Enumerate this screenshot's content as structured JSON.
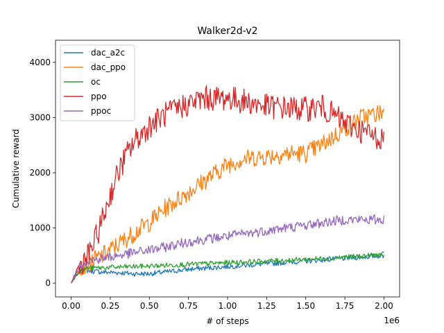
{
  "chart_data": {
    "type": "line",
    "title": "Walker2d-v2",
    "xlabel": "# of steps",
    "ylabel": "Cumulative reward",
    "x_offset_label": "1e6",
    "xlim": [
      -0.1,
      2.1
    ],
    "ylim": [
      -250,
      4400
    ],
    "x_ticks": [
      0.0,
      0.25,
      0.5,
      0.75,
      1.0,
      1.25,
      1.5,
      1.75,
      2.0
    ],
    "x_tick_labels": [
      "0.00",
      "0.25",
      "0.50",
      "0.75",
      "1.00",
      "1.25",
      "1.50",
      "1.75",
      "2.00"
    ],
    "y_ticks": [
      0,
      1000,
      2000,
      3000,
      4000
    ],
    "y_tick_labels": [
      "0",
      "1000",
      "2000",
      "3000",
      "4000"
    ],
    "grid": false,
    "legend_position": "top-left",
    "series": [
      {
        "name": "dac_a2c",
        "color": "#1f77b4",
        "x": [
          0.0,
          0.05,
          0.1,
          0.2,
          0.3,
          0.4,
          0.5,
          0.6,
          0.75,
          1.0,
          1.25,
          1.5,
          1.75,
          2.0
        ],
        "y": [
          0,
          200,
          230,
          200,
          190,
          170,
          170,
          200,
          250,
          300,
          350,
          400,
          450,
          500
        ],
        "noise": 45
      },
      {
        "name": "dac_ppo",
        "color": "#ff7f0e",
        "x": [
          0.0,
          0.05,
          0.1,
          0.2,
          0.3,
          0.4,
          0.5,
          0.6,
          0.75,
          0.9,
          1.0,
          1.1,
          1.25,
          1.4,
          1.5,
          1.6,
          1.75,
          1.85,
          2.0
        ],
        "y": [
          0,
          250,
          350,
          500,
          700,
          900,
          1100,
          1350,
          1650,
          1950,
          2150,
          2250,
          2300,
          2350,
          2350,
          2500,
          2800,
          3000,
          3100
        ],
        "noise": 170
      },
      {
        "name": "oc",
        "color": "#2ca02c",
        "x": [
          0.0,
          0.05,
          0.1,
          0.2,
          0.3,
          0.5,
          0.75,
          1.0,
          1.25,
          1.5,
          1.75,
          2.0
        ],
        "y": [
          0,
          220,
          270,
          280,
          290,
          310,
          340,
          370,
          400,
          430,
          470,
          520
        ],
        "noise": 45
      },
      {
        "name": "ppo",
        "color": "#d62728",
        "x": [
          0.0,
          0.05,
          0.1,
          0.15,
          0.2,
          0.25,
          0.3,
          0.35,
          0.4,
          0.5,
          0.6,
          0.75,
          0.85,
          1.0,
          1.1,
          1.25,
          1.5,
          1.6,
          1.75,
          1.9,
          2.0
        ],
        "y": [
          0,
          300,
          450,
          750,
          1150,
          1600,
          2000,
          2300,
          2550,
          2850,
          3050,
          3250,
          3350,
          3350,
          3300,
          3200,
          3150,
          3200,
          2900,
          2700,
          2600
        ],
        "noise": 230
      },
      {
        "name": "ppoc",
        "color": "#9467bd",
        "x": [
          0.0,
          0.05,
          0.1,
          0.2,
          0.3,
          0.5,
          0.6,
          0.75,
          1.0,
          1.25,
          1.5,
          1.75,
          2.0
        ],
        "y": [
          0,
          300,
          400,
          450,
          500,
          600,
          650,
          750,
          850,
          950,
          1050,
          1150,
          1150
        ],
        "noise": 90
      }
    ]
  }
}
